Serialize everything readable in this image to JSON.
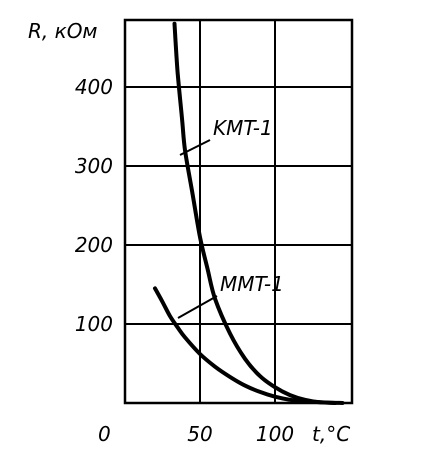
{
  "chart_data": {
    "type": "line",
    "ylabel": "R, кОм",
    "xlabel": "t,°C",
    "origin_label": "0",
    "xlim": [
      0,
      150
    ],
    "ylim": [
      0,
      480
    ],
    "x_ticks": [
      50,
      100
    ],
    "x_tick_labels": [
      "50",
      "100"
    ],
    "y_ticks": [
      100,
      200,
      300,
      400
    ],
    "y_tick_labels": [
      "100",
      "200",
      "300",
      "400"
    ],
    "grid": true,
    "series": [
      {
        "name": "KMT-1",
        "points": [
          [
            33,
            480
          ],
          [
            35,
            420
          ],
          [
            38,
            360
          ],
          [
            40,
            320
          ],
          [
            45,
            265
          ],
          [
            50,
            210
          ],
          [
            55,
            170
          ],
          [
            60,
            132
          ],
          [
            70,
            88
          ],
          [
            80,
            56
          ],
          [
            90,
            34
          ],
          [
            100,
            20
          ],
          [
            110,
            10
          ],
          [
            120,
            4
          ],
          [
            130,
            1
          ],
          [
            145,
            0
          ]
        ]
      },
      {
        "name": "MMT-1",
        "points": [
          [
            20,
            145
          ],
          [
            25,
            128
          ],
          [
            30,
            110
          ],
          [
            35,
            96
          ],
          [
            40,
            83
          ],
          [
            50,
            62
          ],
          [
            60,
            46
          ],
          [
            70,
            33
          ],
          [
            80,
            22
          ],
          [
            90,
            14
          ],
          [
            100,
            8
          ],
          [
            110,
            4
          ],
          [
            120,
            2
          ],
          [
            130,
            1
          ],
          [
            140,
            0
          ]
        ]
      }
    ],
    "annotations": [
      {
        "text": "KMT-1",
        "series": "KMT-1"
      },
      {
        "text": "MMT-1",
        "series": "MMT-1"
      }
    ]
  }
}
